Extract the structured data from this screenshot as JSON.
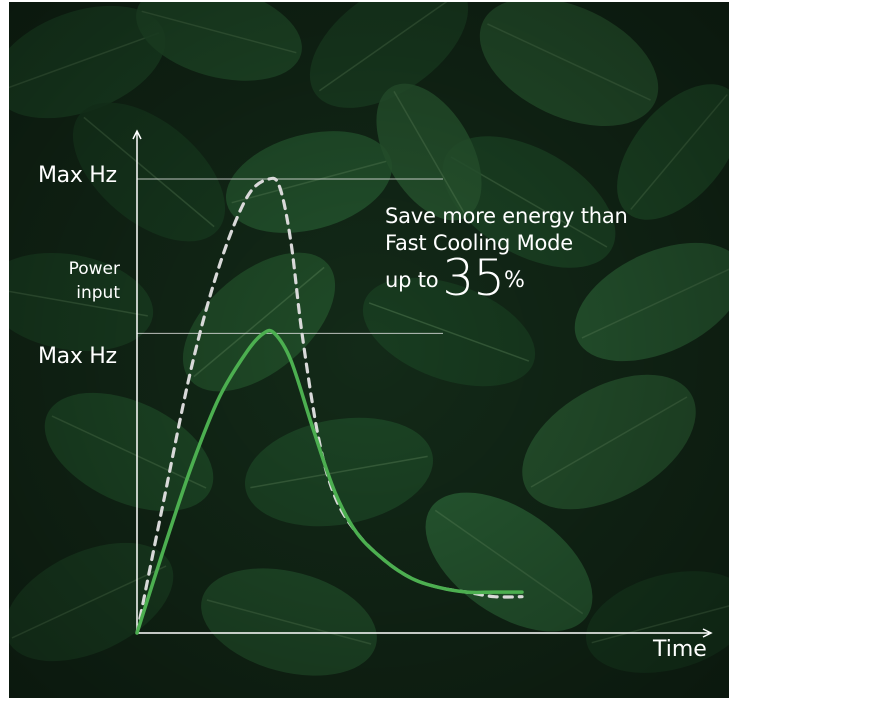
{
  "chart_data": {
    "type": "line",
    "title": "",
    "xlabel": "Time",
    "ylabel_line1": "Power",
    "ylabel_line2": "input",
    "y_ticks": [
      {
        "label": "Max Hz",
        "level": "upper"
      },
      {
        "label": "Max Hz",
        "level": "lower"
      }
    ],
    "series": [
      {
        "style": "dashed",
        "color": "#d9d9d9",
        "x": [
          0,
          0.05,
          0.1,
          0.15,
          0.2,
          0.24,
          0.26,
          0.28,
          0.3,
          0.33,
          0.36,
          0.4,
          0.45,
          0.5,
          0.55,
          0.6,
          0.65,
          0.7
        ],
        "y": [
          0,
          0.3,
          0.59,
          0.81,
          0.96,
          1.0,
          0.98,
          0.86,
          0.66,
          0.43,
          0.3,
          0.22,
          0.16,
          0.12,
          0.1,
          0.09,
          0.08,
          0.08
        ]
      },
      {
        "style": "solid",
        "color": "#4caf50",
        "x": [
          0,
          0.05,
          0.1,
          0.15,
          0.2,
          0.23,
          0.25,
          0.28,
          0.32,
          0.36,
          0.4,
          0.45,
          0.5,
          0.55,
          0.6,
          0.65,
          0.7
        ],
        "y": [
          0,
          0.19,
          0.37,
          0.52,
          0.62,
          0.66,
          0.66,
          0.6,
          0.45,
          0.31,
          0.22,
          0.16,
          0.12,
          0.1,
          0.09,
          0.09,
          0.09
        ]
      }
    ]
  },
  "annotation": {
    "line1": "Save more energy than",
    "line2": "Fast Cooling Mode",
    "prefix": "up to",
    "value": "35",
    "unit": "%"
  },
  "colors": {
    "axis": "#ffffff",
    "gridline": "#e6e6e6",
    "background": "#102416"
  }
}
